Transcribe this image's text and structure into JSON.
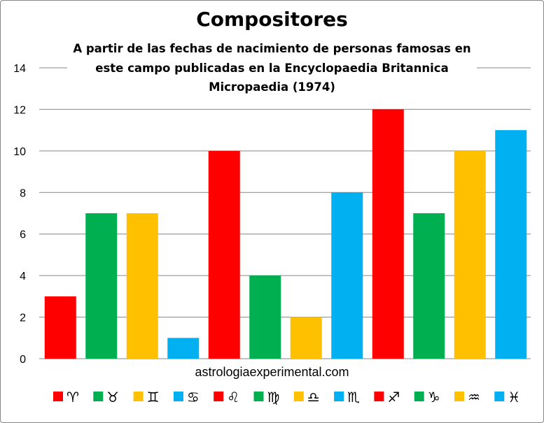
{
  "chart_data": {
    "type": "bar",
    "title": "Compositores",
    "subtitle_lines": [
      "A partir de las fechas de nacimiento de personas famosas en",
      "este campo publicadas en la Encyclopaedia Britannica",
      "Micropaedia (1974)"
    ],
    "source": "astrologiaexperimental.com",
    "categories": [
      "♈",
      "♉",
      "♊",
      "♋",
      "♌",
      "♍",
      "♎",
      "♏",
      "♐",
      "♑",
      "♒",
      "♓"
    ],
    "values": [
      3,
      7,
      7,
      1,
      10,
      4,
      2,
      8,
      12,
      7,
      10,
      11
    ],
    "colors": [
      "#FF0000",
      "#00B050",
      "#FFC000",
      "#00B0F0",
      "#FF0000",
      "#00B050",
      "#FFC000",
      "#00B0F0",
      "#FF0000",
      "#00B050",
      "#FFC000",
      "#00B0F0"
    ],
    "ylim": [
      0,
      14
    ],
    "yticks": [
      "0",
      "2",
      "4",
      "6",
      "8",
      "10",
      "12",
      "14"
    ],
    "grid": true,
    "legend_position": "bottom"
  }
}
